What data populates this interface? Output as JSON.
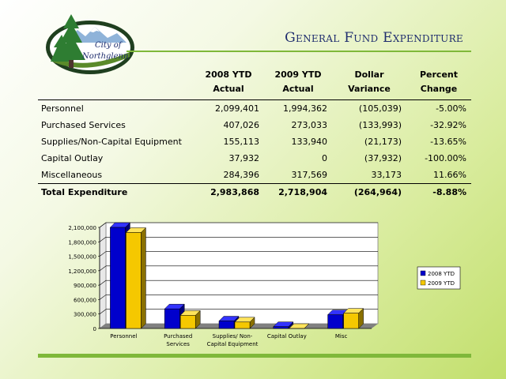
{
  "title": "General Fund Expenditure",
  "logo": {
    "line1": "City of",
    "line2": "Northglenn"
  },
  "table": {
    "headers": [
      {
        "line1": "",
        "line2": ""
      },
      {
        "line1": "2008 YTD",
        "line2": "Actual"
      },
      {
        "line1": "2009 YTD",
        "line2": "Actual"
      },
      {
        "line1": "Dollar",
        "line2": "Variance"
      },
      {
        "line1": "Percent",
        "line2": "Change"
      }
    ],
    "rows": [
      {
        "label": "Personnel",
        "v2008": "2,099,401",
        "v2009": "1,994,362",
        "variance": "(105,039)",
        "change": "-5.00%"
      },
      {
        "label": "Purchased Services",
        "v2008": "407,026",
        "v2009": "273,033",
        "variance": "(133,993)",
        "change": "-32.92%"
      },
      {
        "label": "Supplies/Non-Capital Equipment",
        "v2008": "155,113",
        "v2009": "133,940",
        "variance": "(21,173)",
        "change": "-13.65%"
      },
      {
        "label": "Capital Outlay",
        "v2008": "37,932",
        "v2009": "0",
        "variance": "(37,932)",
        "change": "-100.00%"
      },
      {
        "label": "Miscellaneous",
        "v2008": "284,396",
        "v2009": "317,569",
        "variance": "33,173",
        "change": "11.66%"
      }
    ],
    "total": {
      "label": "Total Expenditure",
      "v2008": "2,983,868",
      "v2009": "2,718,904",
      "variance": "(264,964)",
      "change": "-8.88%"
    }
  },
  "chart_data": {
    "type": "bar",
    "categories": [
      "Personnel",
      "Purchased Services",
      "Supplies/ Non-Capital Equipment",
      "Capital Outlay",
      "Misc"
    ],
    "category_lines": [
      [
        "Personnel"
      ],
      [
        "Purchased",
        "Services"
      ],
      [
        "Supplies/ Non-",
        "Capital Equipment"
      ],
      [
        "Capital Outlay"
      ],
      [
        "Misc"
      ]
    ],
    "series": [
      {
        "name": "2008 YTD",
        "values": [
          2099401,
          407026,
          155113,
          37932,
          284396
        ]
      },
      {
        "name": "2009 YTD",
        "values": [
          1994362,
          273033,
          133940,
          0,
          317569
        ]
      }
    ],
    "ylim": [
      0,
      2100000
    ],
    "yticks": [
      0,
      300000,
      600000,
      900000,
      1200000,
      1500000,
      1800000,
      2100000
    ],
    "ytick_labels": [
      "0",
      "300,000",
      "600,000",
      "900,000",
      "1,200,000",
      "1,500,000",
      "1,800,000",
      "2,100,000"
    ],
    "legend_position": "right",
    "grid": true,
    "colors": {
      "s2008": "#0000cc",
      "s2009": "#f5c800",
      "floor": "#808080"
    }
  }
}
